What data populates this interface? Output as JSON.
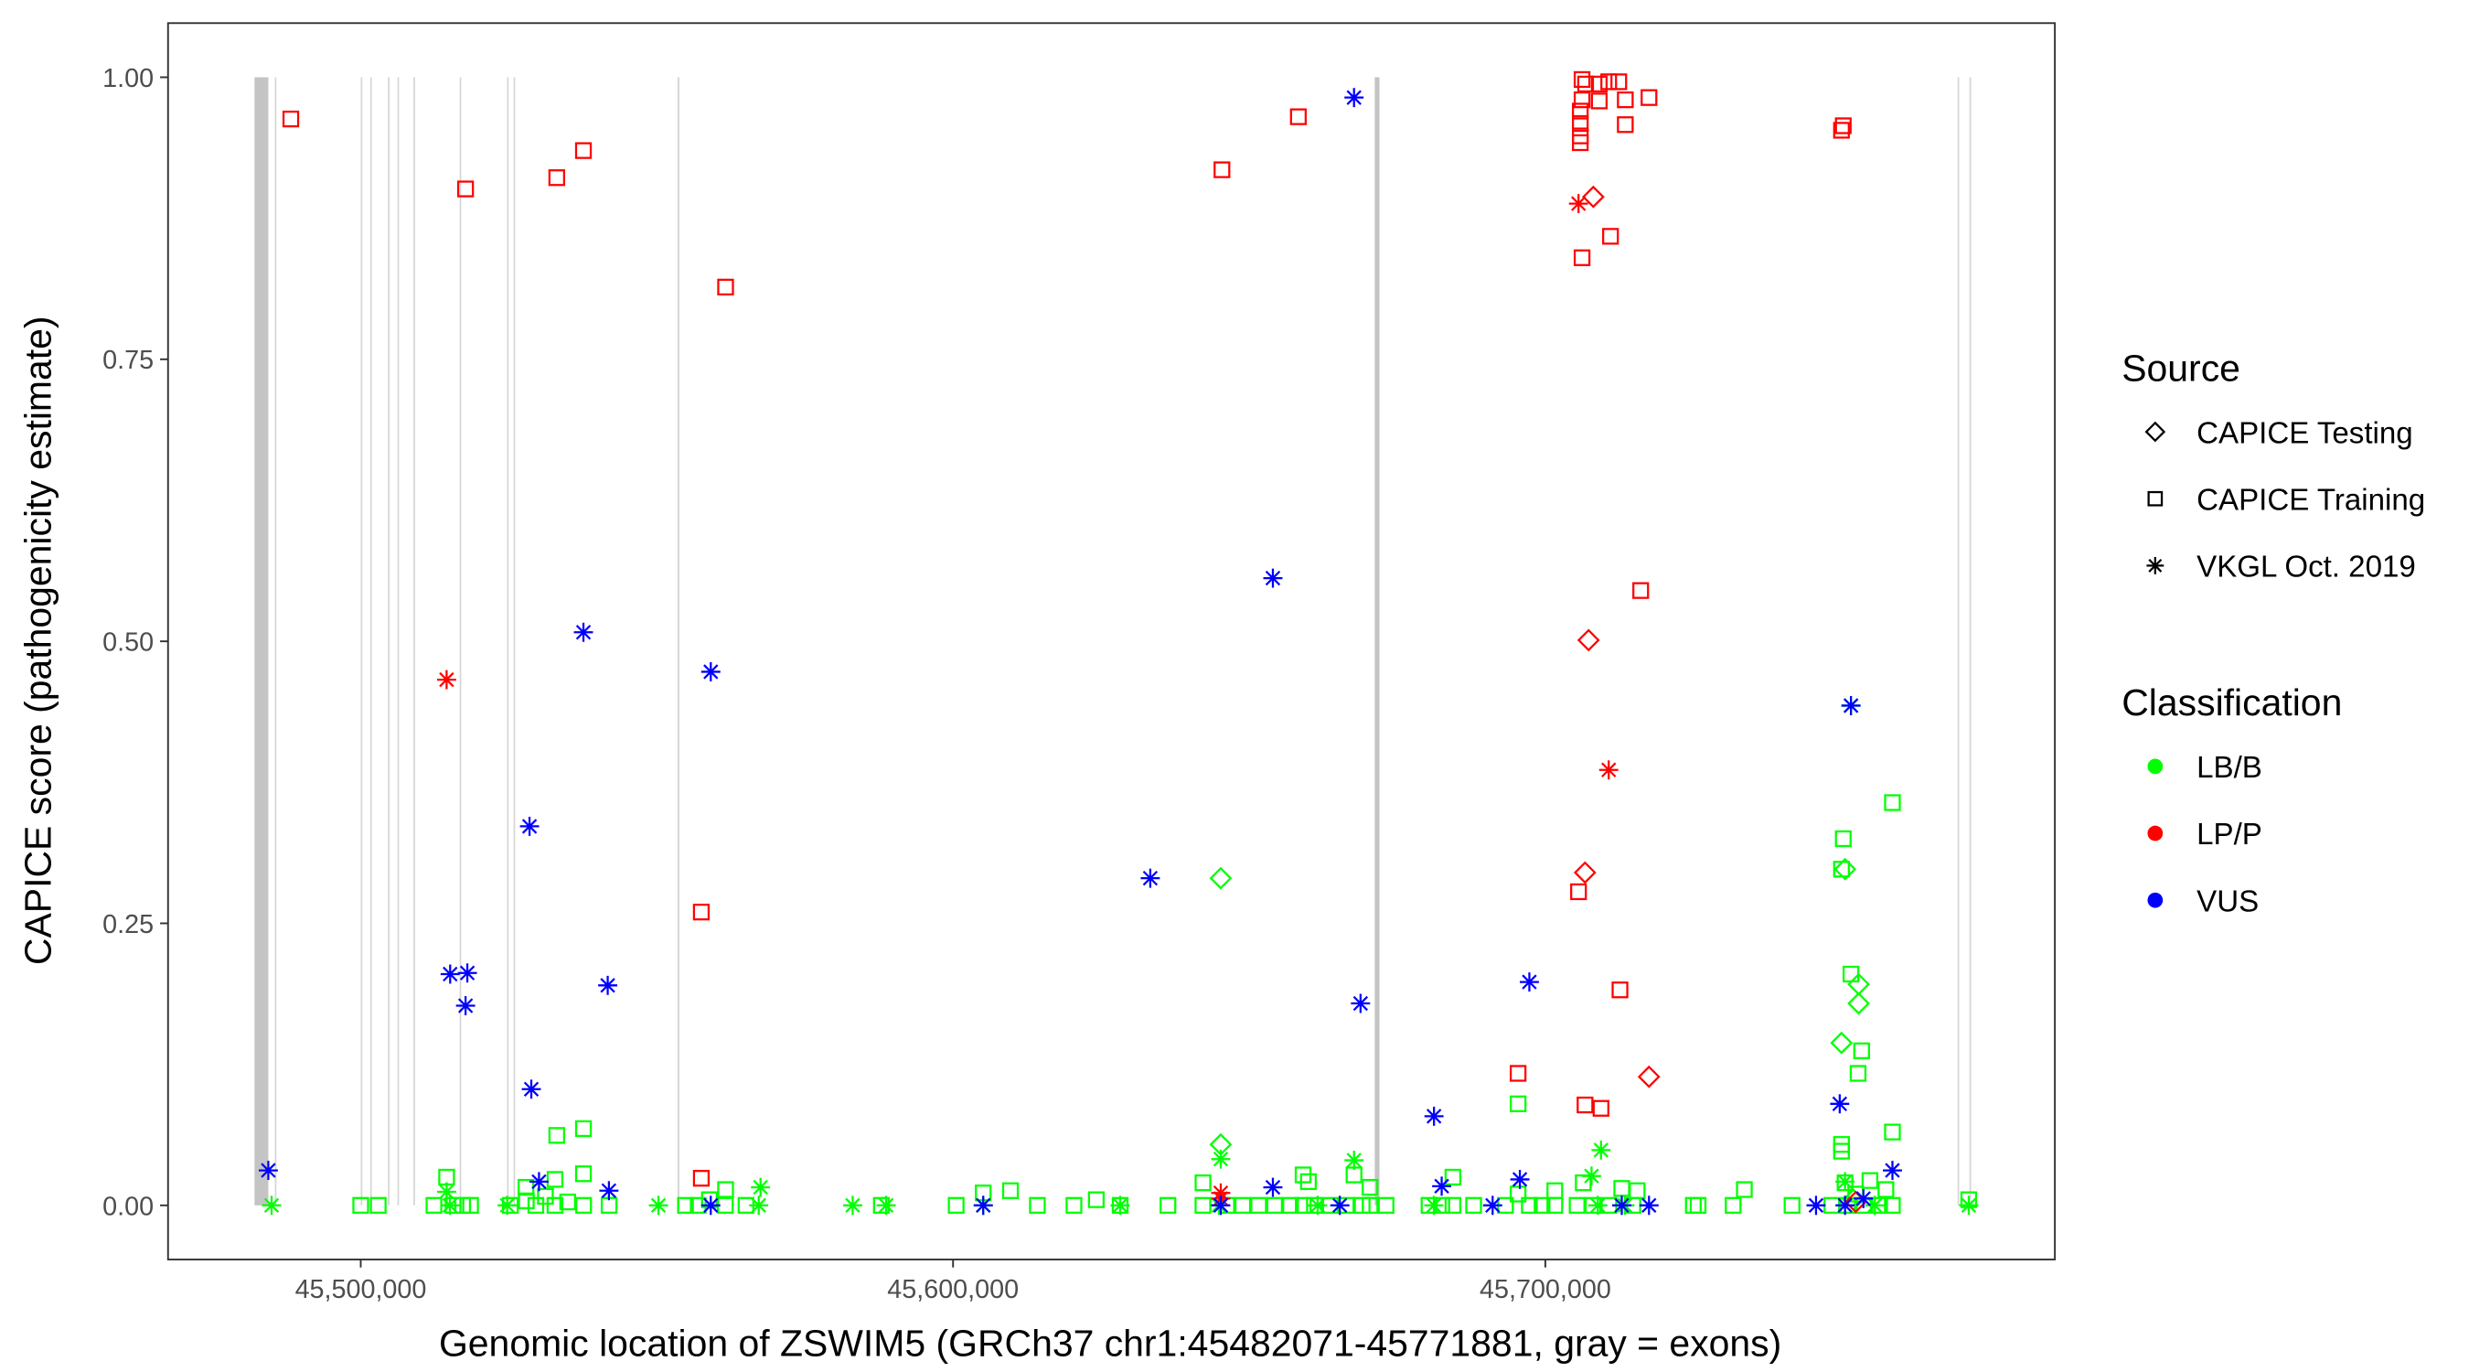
{
  "chart_data": {
    "type": "scatter",
    "xlabel": "Genomic location of ZSWIM5 (GRCh37 chr1:45482071-45771881, gray = exons)",
    "ylabel": "CAPICE score (pathogenicity estimate)",
    "xlim": [
      45467470,
      45786020
    ],
    "ylim": [
      -0.048,
      1.048
    ],
    "x_ticks": [
      45500000,
      45600000,
      45700000
    ],
    "x_tick_labels": [
      "45,500,000",
      "45,600,000",
      "45,700,000"
    ],
    "y_ticks": [
      0,
      0.25,
      0.5,
      0.75,
      1.0
    ],
    "y_tick_labels": [
      "0.00",
      "0.25",
      "0.50",
      "0.75",
      "1.00"
    ],
    "grid": false,
    "legend_placement": "right",
    "legend": {
      "source_title": "Source",
      "source_items": [
        {
          "label": "CAPICE Testing",
          "shape": "diamond"
        },
        {
          "label": "CAPICE Training",
          "shape": "square"
        },
        {
          "label": "VKGL Oct. 2019",
          "shape": "star"
        }
      ],
      "class_title": "Classification",
      "class_items": [
        {
          "label": "LB/B",
          "color": "#00FF00"
        },
        {
          "label": "LP/P",
          "color": "#FF0000"
        },
        {
          "label": "VUS",
          "color": "#0000FF"
        }
      ]
    },
    "exons": [
      [
        45482071,
        45484400
      ],
      [
        45485500,
        45485700
      ],
      [
        45500000,
        45500200
      ],
      [
        45501600,
        45501800
      ],
      [
        45504600,
        45504800
      ],
      [
        45506200,
        45506400
      ],
      [
        45508900,
        45509100
      ],
      [
        45516700,
        45516900
      ],
      [
        45524700,
        45524900
      ],
      [
        45525800,
        45526000
      ],
      [
        45553500,
        45553800
      ],
      [
        45671200,
        45672000
      ],
      [
        45769600,
        45769800
      ],
      [
        45771600,
        45771881
      ]
    ],
    "series": [
      {
        "classification": "LP/P",
        "source": "CAPICE Training",
        "points": [
          [
            45488200,
            0.963
          ],
          [
            45517700,
            0.901
          ],
          [
            45533100,
            0.911
          ],
          [
            45537600,
            0.935
          ],
          [
            45561600,
            0.814
          ],
          [
            45557500,
            0.26
          ],
          [
            45557500,
            0.024
          ],
          [
            45645400,
            0.918
          ],
          [
            45658300,
            0.965
          ],
          [
            45706200,
            0.998
          ],
          [
            45706800,
            0.994
          ],
          [
            45709100,
            0.994
          ],
          [
            45710700,
            0.996
          ],
          [
            45712400,
            0.996
          ],
          [
            45709100,
            0.979
          ],
          [
            45713500,
            0.98
          ],
          [
            45717500,
            0.982
          ],
          [
            45706200,
            0.98
          ],
          [
            45705900,
            0.97
          ],
          [
            45705900,
            0.959
          ],
          [
            45705900,
            0.948
          ],
          [
            45705900,
            0.942
          ],
          [
            45713500,
            0.958
          ],
          [
            45706200,
            0.84
          ],
          [
            45711000,
            0.859
          ],
          [
            45716100,
            0.545
          ],
          [
            45705600,
            0.278
          ],
          [
            45712600,
            0.191
          ],
          [
            45695400,
            0.117
          ],
          [
            45706700,
            0.089
          ],
          [
            45709400,
            0.086
          ],
          [
            45750000,
            0.953
          ],
          [
            45750300,
            0.957
          ]
        ]
      },
      {
        "classification": "LP/P",
        "source": "CAPICE Testing",
        "points": [
          [
            45708100,
            0.894
          ],
          [
            45707300,
            0.501
          ],
          [
            45706700,
            0.295
          ],
          [
            45717500,
            0.114
          ],
          [
            45752400,
            0.003
          ]
        ]
      },
      {
        "classification": "LP/P",
        "source": "VKGL Oct. 2019",
        "points": [
          [
            45514500,
            0.466
          ],
          [
            45645200,
            0.011
          ],
          [
            45645200,
            0.006
          ],
          [
            45705600,
            0.888
          ],
          [
            45710700,
            0.386
          ]
        ]
      },
      {
        "classification": "VUS",
        "source": "VKGL Oct. 2019",
        "points": [
          [
            45484400,
            0.031
          ],
          [
            45515100,
            0.205
          ],
          [
            45518000,
            0.206
          ],
          [
            45517700,
            0.177
          ],
          [
            45528500,
            0.336
          ],
          [
            45528800,
            0.103
          ],
          [
            45530100,
            0.021
          ],
          [
            45537600,
            0.508
          ],
          [
            45541700,
            0.195
          ],
          [
            45541900,
            0.013
          ],
          [
            45559100,
            0.473
          ],
          [
            45559100,
            0.0
          ],
          [
            45605100,
            0.0
          ],
          [
            45633300,
            0.29
          ],
          [
            45645200,
            0.0
          ],
          [
            45654000,
            0.556
          ],
          [
            45654000,
            0.016
          ],
          [
            45667700,
            0.982
          ],
          [
            45668800,
            0.179
          ],
          [
            45665300,
            0.0
          ],
          [
            45681200,
            0.079
          ],
          [
            45682500,
            0.017
          ],
          [
            45691100,
            0.0
          ],
          [
            45695700,
            0.023
          ],
          [
            45697300,
            0.198
          ],
          [
            45712900,
            0.0
          ],
          [
            45717500,
            0.0
          ],
          [
            45745700,
            0.0
          ],
          [
            45749700,
            0.09
          ],
          [
            45751600,
            0.443
          ],
          [
            45750600,
            0.0
          ],
          [
            45753700,
            0.006
          ],
          [
            45758600,
            0.031
          ]
        ]
      },
      {
        "classification": "LB/B",
        "source": "CAPICE Training",
        "points": [
          [
            45500000,
            0.0
          ],
          [
            45502957,
            0.0
          ],
          [
            45512365,
            0.0
          ],
          [
            45515590,
            0.0
          ],
          [
            45517203,
            0.0
          ],
          [
            45518547,
            0.0
          ],
          [
            45525267,
            0.0
          ],
          [
            45527955,
            0.004
          ],
          [
            45529568,
            0.0
          ],
          [
            45531181,
            0.008
          ],
          [
            45532794,
            0.0
          ],
          [
            45534944,
            0.003
          ],
          [
            45537632,
            0.0
          ],
          [
            45541933,
            0.0
          ],
          [
            45554835,
            0.0
          ],
          [
            45556986,
            0.0
          ],
          [
            45558867,
            0.005
          ],
          [
            45561555,
            0.0
          ],
          [
            45565050,
            0.0
          ],
          [
            45587898,
            0.0
          ],
          [
            45600531,
            0.0
          ],
          [
            45614240,
            0.0
          ],
          [
            45620422,
            0.0
          ],
          [
            45624186,
            0.005
          ],
          [
            45628218,
            0.0
          ],
          [
            45636282,
            0.0
          ],
          [
            45642195,
            0.0
          ],
          [
            45646227,
            0.0
          ],
          [
            45648915,
            0.0
          ],
          [
            45651603,
            0.0
          ],
          [
            45654291,
            0.0
          ],
          [
            45656979,
            0.0
          ],
          [
            45659130,
            0.0
          ],
          [
            45661011,
            0.0
          ],
          [
            45663699,
            0.0
          ],
          [
            45666387,
            0.0
          ],
          [
            45669075,
            0.0
          ],
          [
            45670419,
            0.0
          ],
          [
            45673107,
            0.0
          ],
          [
            45680365,
            0.0
          ],
          [
            45682515,
            0.0
          ],
          [
            45684397,
            0.0
          ],
          [
            45687891,
            0.0
          ],
          [
            45693267,
            0.0
          ],
          [
            45697299,
            0.0
          ],
          [
            45699450,
            0.0
          ],
          [
            45701600,
            0.0
          ],
          [
            45705363,
            0.0
          ],
          [
            45708051,
            0.0
          ],
          [
            45710739,
            0.0
          ],
          [
            45714771,
            0.0
          ],
          [
            45724986,
            0.0
          ],
          [
            45725792,
            0.0
          ],
          [
            45731706,
            0.0
          ],
          [
            45741651,
            0.0
          ],
          [
            45748371,
            0.0
          ],
          [
            45751059,
            0.0
          ],
          [
            45753747,
            0.0
          ],
          [
            45756435,
            0.0
          ],
          [
            45758586,
            0.0
          ],
          [
            45771488,
            0.005
          ],
          [
            45533100,
            0.062
          ],
          [
            45537600,
            0.068
          ],
          [
            45514500,
            0.025
          ],
          [
            45537600,
            0.028
          ],
          [
            45532800,
            0.023
          ],
          [
            45527900,
            0.016
          ],
          [
            45561600,
            0.014
          ],
          [
            45605100,
            0.011
          ],
          [
            45609700,
            0.013
          ],
          [
            45642200,
            0.02
          ],
          [
            45659100,
            0.027
          ],
          [
            45660000,
            0.021
          ],
          [
            45667700,
            0.027
          ],
          [
            45670400,
            0.016
          ],
          [
            45684400,
            0.025
          ],
          [
            45695400,
            0.09
          ],
          [
            45706400,
            0.02
          ],
          [
            45712900,
            0.015
          ],
          [
            45715500,
            0.013
          ],
          [
            45701600,
            0.013
          ],
          [
            45733600,
            0.014
          ],
          [
            45750300,
            0.325
          ],
          [
            45750000,
            0.298
          ],
          [
            45751600,
            0.205
          ],
          [
            45753400,
            0.137
          ],
          [
            45752800,
            0.117
          ],
          [
            45758600,
            0.357
          ],
          [
            45758600,
            0.065
          ],
          [
            45750000,
            0.054
          ],
          [
            45750000,
            0.048
          ],
          [
            45750600,
            0.02
          ],
          [
            45754800,
            0.022
          ],
          [
            45757500,
            0.014
          ],
          [
            45752400,
            0.01
          ],
          [
            45695400,
            0.01
          ]
        ]
      },
      {
        "classification": "LB/B",
        "source": "CAPICE Testing",
        "points": [
          [
            45645200,
            0.29
          ],
          [
            45645200,
            0.054
          ],
          [
            45750600,
            0.298
          ],
          [
            45752900,
            0.196
          ],
          [
            45752900,
            0.179
          ],
          [
            45750000,
            0.144
          ],
          [
            45752000,
            0.005
          ]
        ]
      },
      {
        "classification": "LB/B",
        "source": "VKGL Oct. 2019",
        "points": [
          [
            45484947,
            0.0
          ],
          [
            45515053,
            0.0
          ],
          [
            45514500,
            0.012
          ],
          [
            45524730,
            0.0
          ],
          [
            45550266,
            0.0
          ],
          [
            45567200,
            0.0
          ],
          [
            45567500,
            0.016
          ],
          [
            45583059,
            0.0
          ],
          [
            45588704,
            0.0
          ],
          [
            45605101,
            0.0
          ],
          [
            45628218,
            0.0
          ],
          [
            45644883,
            0.0
          ],
          [
            45645200,
            0.041
          ],
          [
            45661549,
            0.0
          ],
          [
            45667700,
            0.04
          ],
          [
            45681171,
            0.0
          ],
          [
            45708858,
            0.0
          ],
          [
            45709400,
            0.049
          ],
          [
            45707800,
            0.026
          ],
          [
            45713427,
            0.0
          ],
          [
            45771488,
            0.0
          ],
          [
            45755629,
            0.0
          ],
          [
            45751600,
            0.443
          ],
          [
            45750600,
            0.021
          ]
        ]
      }
    ]
  }
}
